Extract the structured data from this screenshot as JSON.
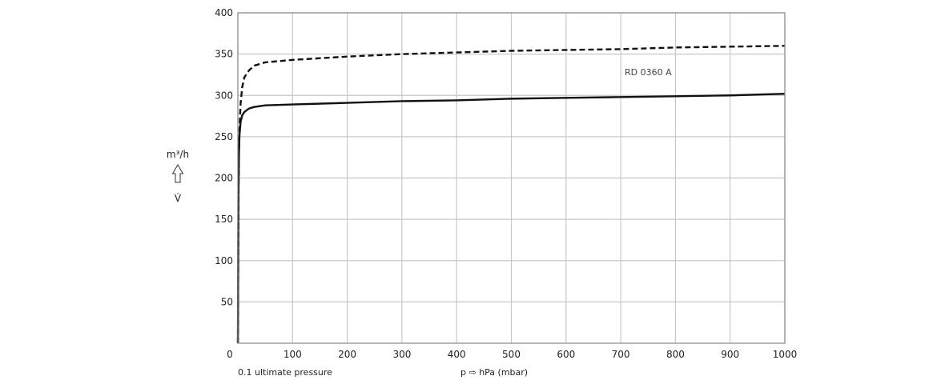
{
  "chart_data": {
    "type": "line",
    "xlabel": "p ⇨ hPa (mbar)",
    "ylabel_unit": "m³/h",
    "ylabel_symbol": "V̇",
    "x_origin_note": "0.1 ultimate pressure",
    "xlim": [
      0,
      1000
    ],
    "ylim": [
      0,
      400
    ],
    "grid": true,
    "x_ticks": [
      "0",
      "100",
      "200",
      "300",
      "400",
      "500",
      "600",
      "700",
      "800",
      "900",
      "1000"
    ],
    "y_ticks": [
      "50",
      "100",
      "150",
      "200",
      "250",
      "300",
      "350",
      "400"
    ],
    "series": [
      {
        "name": "",
        "style": "dashed",
        "x": [
          0.1,
          1,
          2,
          3,
          5,
          8,
          12,
          20,
          30,
          50,
          100,
          200,
          300,
          400,
          500,
          600,
          700,
          800,
          900,
          1000
        ],
        "y": [
          0,
          170,
          230,
          260,
          290,
          310,
          322,
          330,
          336,
          340,
          343,
          347,
          350,
          352,
          354,
          355,
          356,
          358,
          359,
          360
        ]
      },
      {
        "name": "RD 0360 A",
        "style": "solid",
        "x": [
          0.1,
          1,
          2,
          3,
          5,
          8,
          12,
          20,
          30,
          50,
          100,
          200,
          300,
          400,
          500,
          600,
          700,
          800,
          900,
          1000
        ],
        "y": [
          0,
          180,
          230,
          252,
          268,
          276,
          280,
          284,
          286,
          288,
          289,
          291,
          293,
          294,
          296,
          297,
          298,
          299,
          300,
          302
        ]
      }
    ],
    "annotation": "RD 0360 A",
    "colors": {
      "grid": "#c8c8c8",
      "line": "#111111",
      "frame": "#888888"
    }
  }
}
